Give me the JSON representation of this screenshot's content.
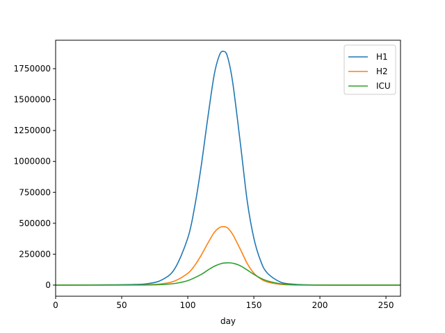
{
  "chart_data": {
    "type": "line",
    "xlabel": "day",
    "ylabel": "",
    "xlim": [
      0,
      261
    ],
    "ylim": [
      -90000,
      1980000
    ],
    "x_ticks": [
      0,
      50,
      100,
      150,
      200,
      250
    ],
    "y_ticks": [
      0,
      250000,
      500000,
      750000,
      1000000,
      1250000,
      1500000,
      1750000
    ],
    "x_tick_labels": [
      "0",
      "50",
      "100",
      "150",
      "200",
      "250"
    ],
    "y_tick_labels": [
      "0",
      "250000",
      "500000",
      "750000",
      "1000000",
      "1250000",
      "1500000",
      "1750000"
    ],
    "grid": false,
    "legend_position": "top-right",
    "series": [
      {
        "name": "H1",
        "color": "#1f77b4",
        "x": [
          0,
          40,
          60,
          70,
          80,
          90,
          100,
          105,
          110,
          115,
          120,
          124,
          127,
          130,
          134,
          140,
          145,
          150,
          155,
          160,
          170,
          180,
          190,
          200,
          220,
          240,
          261
        ],
        "y": [
          0,
          2000,
          5000,
          12000,
          40000,
          130000,
          380000,
          620000,
          950000,
          1340000,
          1700000,
          1860000,
          1890000,
          1850000,
          1640000,
          1130000,
          680000,
          380000,
          200000,
          100000,
          25000,
          7000,
          2000,
          500,
          0,
          0,
          0
        ]
      },
      {
        "name": "H2",
        "color": "#ff7f0e",
        "x": [
          0,
          40,
          60,
          70,
          80,
          90,
          100,
          105,
          110,
          115,
          120,
          124,
          127,
          130,
          134,
          140,
          145,
          150,
          155,
          160,
          170,
          180,
          190,
          200,
          220,
          240,
          261
        ],
        "y": [
          0,
          500,
          1200,
          3000,
          10000,
          33000,
          95000,
          155000,
          238000,
          335000,
          425000,
          465000,
          473000,
          463000,
          410000,
          285000,
          175000,
          97000,
          52000,
          26000,
          6500,
          1800,
          500,
          100,
          0,
          0,
          0
        ]
      },
      {
        "name": "ICU",
        "color": "#2ca02c",
        "x": [
          0,
          40,
          60,
          70,
          80,
          90,
          100,
          110,
          115,
          120,
          125,
          128,
          132,
          136,
          140,
          145,
          150,
          155,
          160,
          170,
          180,
          190,
          200,
          220,
          240,
          261
        ],
        "y": [
          0,
          200,
          600,
          1500,
          4500,
          13000,
          36000,
          85000,
          120000,
          152000,
          173000,
          179000,
          180000,
          172000,
          155000,
          122000,
          87000,
          57000,
          35000,
          11000,
          3000,
          800,
          200,
          0,
          0,
          0
        ]
      }
    ]
  }
}
